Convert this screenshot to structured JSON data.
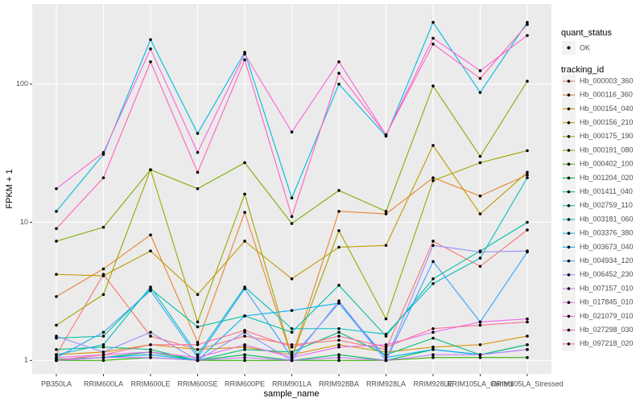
{
  "chart_data": {
    "type": "line",
    "log_scale": true,
    "grid": true,
    "x_label": "sample_name",
    "y_label": "FPKM + 1",
    "categories": [
      "PB350LA",
      "RRIM600LA",
      "RRIM600LE",
      "RRIM600SE",
      "RRIM600PE",
      "RRIM901LA",
      "RRIM928BA",
      "RRIM928LA",
      "RRIM928LE",
      "RRIM105LA_Control",
      "RRIM105LA_Stressed"
    ],
    "ylim": [
      0.8,
      380
    ],
    "yticks": [
      1,
      10,
      100
    ],
    "legend_status_title": "quant_status",
    "legend_status_entry": "OK",
    "legend_title": "tracking_id",
    "series": [
      {
        "name": "Hb_000003_360",
        "color": "#F8766D",
        "values": [
          1.1,
          4.2,
          1.5,
          1.2,
          1.5,
          1.3,
          1.4,
          1.2,
          7.3,
          4.8,
          8.8
        ]
      },
      {
        "name": "Hb_000116_360",
        "color": "#EA8331",
        "values": [
          2.9,
          4.6,
          8.1,
          1.35,
          11.8,
          1.05,
          12,
          11.5,
          21,
          15.5,
          22
        ]
      },
      {
        "name": "Hb_000154_040",
        "color": "#D89000",
        "values": [
          1.1,
          1.15,
          1.3,
          1.2,
          1.25,
          1.1,
          1.3,
          1.15,
          1.25,
          1.3,
          1.5
        ]
      },
      {
        "name": "Hb_000156_210",
        "color": "#C09B00",
        "values": [
          4.2,
          4.1,
          6.2,
          3,
          7.3,
          3.9,
          6.6,
          6.8,
          36,
          11.5,
          23
        ]
      },
      {
        "name": "Hb_000175_190",
        "color": "#A3A500",
        "values": [
          1.8,
          3,
          24,
          1.9,
          16,
          1.05,
          8.7,
          2,
          20,
          27,
          33
        ]
      },
      {
        "name": "Hb_000191_080",
        "color": "#7CAE00",
        "values": [
          7.3,
          9.2,
          24,
          17.5,
          27,
          9.8,
          17,
          12,
          97,
          30,
          105
        ]
      },
      {
        "name": "Hb_000402_100",
        "color": "#39B600",
        "values": [
          1.0,
          1.0,
          1.05,
          1.0,
          1.0,
          1.0,
          1.0,
          1.0,
          1.05,
          1.05,
          1.05
        ]
      },
      {
        "name": "Hb_001204_020",
        "color": "#00BB4E",
        "values": [
          1.02,
          1.05,
          1.15,
          1.0,
          1.1,
          1.0,
          1.1,
          1.0,
          1.2,
          1.1,
          1.3
        ]
      },
      {
        "name": "Hb_001411_040",
        "color": "#00BF7D",
        "values": [
          1.2,
          1.25,
          1.2,
          1.0,
          1.2,
          1.15,
          1.6,
          1.1,
          1.45,
          1.1,
          1.3
        ]
      },
      {
        "name": "Hb_002759_110",
        "color": "#00C1A3",
        "values": [
          1.45,
          1.5,
          3.3,
          1.75,
          2.1,
          1.6,
          3.5,
          1.5,
          3.9,
          6.2,
          10
        ]
      },
      {
        "name": "Hb_003181_060",
        "color": "#00BFC4",
        "values": [
          1.1,
          1.3,
          3.4,
          1.1,
          3.4,
          1.7,
          1.7,
          1.55,
          3.6,
          5.5,
          21
        ]
      },
      {
        "name": "Hb_003376_380",
        "color": "#00BAE0",
        "values": [
          12,
          31,
          210,
          44,
          170,
          15,
          100,
          42,
          280,
          87,
          280
        ]
      },
      {
        "name": "Hb_003673_040",
        "color": "#00B0F6",
        "values": [
          1.0,
          1.05,
          1.1,
          1.0,
          2.1,
          2.3,
          2.6,
          1.05,
          1.2,
          1.1,
          1.2
        ]
      },
      {
        "name": "Hb_004934_120",
        "color": "#35A2FF",
        "values": [
          1.05,
          1.6,
          3.2,
          1.05,
          3.3,
          1.05,
          2.6,
          1.0,
          5.2,
          1.9,
          6.1
        ]
      },
      {
        "name": "Hb_006452_230",
        "color": "#9590FF",
        "values": [
          1.5,
          1.15,
          1.6,
          1.0,
          1.6,
          1.0,
          2.7,
          1.0,
          6.8,
          6.1,
          6.2
        ]
      },
      {
        "name": "Hb_007157_010",
        "color": "#C77CFF",
        "values": [
          1.0,
          1.05,
          1.05,
          1.0,
          1.05,
          1.0,
          1.05,
          1.0,
          1.1,
          1.1,
          1.2
        ]
      },
      {
        "name": "Hb_017845_010",
        "color": "#E76BF3",
        "values": [
          1.05,
          1.1,
          1.15,
          1.05,
          1.3,
          1.05,
          1.25,
          1.3,
          1.6,
          1.9,
          2.0
        ]
      },
      {
        "name": "Hb_021079_010",
        "color": "#FA62DB",
        "values": [
          17.5,
          32,
          180,
          32,
          165,
          45,
          145,
          43,
          215,
          125,
          225
        ]
      },
      {
        "name": "Hb_027298_030",
        "color": "#FF62BC",
        "values": [
          9,
          21,
          145,
          23,
          150,
          11,
          120,
          43,
          195,
          110,
          270
        ]
      },
      {
        "name": "Hb_097218_020",
        "color": "#FF6C91",
        "values": [
          1.0,
          1.1,
          1.3,
          1.3,
          1.65,
          1.25,
          1.5,
          1.25,
          1.7,
          1.8,
          1.9
        ]
      }
    ]
  }
}
